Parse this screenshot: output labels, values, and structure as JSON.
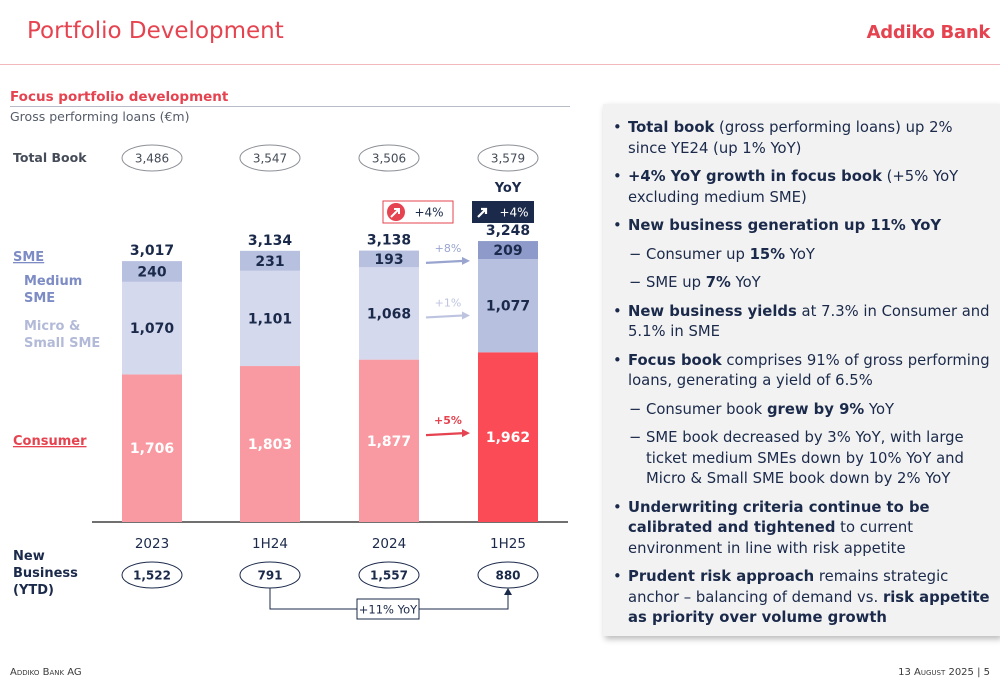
{
  "header": {
    "title": "Portfolio Development",
    "logo_text": "Addiko Bank"
  },
  "chart_header": {
    "heading": "Focus portfolio development",
    "subheading": "Gross performing loans (€m)"
  },
  "chart_data": {
    "type": "bar",
    "stacked": true,
    "categories": [
      "2023",
      "1H24",
      "2024",
      "1H25"
    ],
    "series": [
      {
        "name": "Consumer",
        "values": [
          1706,
          1803,
          1877,
          1962
        ]
      },
      {
        "name": "Micro & Small SME",
        "values": [
          1070,
          1101,
          1068,
          1077
        ]
      },
      {
        "name": "Medium SME",
        "values": [
          240,
          231,
          193,
          209
        ]
      }
    ],
    "series_group_label": "SME",
    "totals": [
      3017,
      3134,
      3138,
      3248
    ],
    "total_book_label": "Total Book",
    "total_book": [
      "3,486",
      "3,547",
      "3,506",
      "3,579"
    ],
    "new_business_label": "New Business (YTD)",
    "new_business": [
      "1,522",
      "791",
      "1,557",
      "880"
    ],
    "new_business_growth": "+11% YoY",
    "yoy_label": "YoY",
    "badges": [
      {
        "text": "+4%",
        "style": "outline"
      },
      {
        "text": "+4%",
        "style": "dark"
      }
    ],
    "growth_arrows": [
      {
        "series": "Medium SME",
        "text": "+8%"
      },
      {
        "series": "Micro & Small SME",
        "text": "+1%"
      },
      {
        "series": "Consumer",
        "text": "+5%"
      }
    ],
    "colors": {
      "consumer": "#f99aa2",
      "consumer_highlight": "#fb4b57",
      "micro_small_sme": "#d4d9ee",
      "micro_small_sme_highlight": "#b8c0e0",
      "medium_sme": "#b8c0e0",
      "medium_sme_highlight": "#8e9bca",
      "label_dark": "#1b2a4a",
      "label_light": "#ffffff",
      "accent_red": "#e5434f",
      "dark_badge": "#1b2a4a"
    }
  },
  "bullets": [
    {
      "level": 1,
      "segments": [
        {
          "t": "Total book",
          "b": true
        },
        {
          "t": " (gross performing loans) up 2% since YE24 (up 1% YoY)"
        }
      ]
    },
    {
      "level": 1,
      "segments": [
        {
          "t": "+4% YoY growth in focus book",
          "b": true
        },
        {
          "t": " (+5% YoY excluding medium SME)"
        }
      ]
    },
    {
      "level": 1,
      "segments": [
        {
          "t": "New business generation up 11% YoY",
          "b": true
        }
      ]
    },
    {
      "level": 2,
      "segments": [
        {
          "t": "Consumer up "
        },
        {
          "t": "15%",
          "b": true
        },
        {
          "t": " YoY"
        }
      ]
    },
    {
      "level": 2,
      "segments": [
        {
          "t": "SME up "
        },
        {
          "t": "7%",
          "b": true
        },
        {
          "t": " YoY"
        }
      ]
    },
    {
      "level": 1,
      "segments": [
        {
          "t": "New business yields",
          "b": true
        },
        {
          "t": " at 7.3% in Consumer and 5.1% in SME"
        }
      ]
    },
    {
      "level": 1,
      "segments": [
        {
          "t": "Focus book",
          "b": true
        },
        {
          "t": " comprises 91% of gross performing loans, generating a yield of 6.5%"
        }
      ]
    },
    {
      "level": 2,
      "segments": [
        {
          "t": "Consumer book "
        },
        {
          "t": "grew by 9%",
          "b": true
        },
        {
          "t": " YoY"
        }
      ]
    },
    {
      "level": 2,
      "segments": [
        {
          "t": "SME book decreased by 3% YoY, with large ticket medium SMEs down by 10% YoY and Micro & Small SME book down by 2% YoY"
        }
      ]
    },
    {
      "level": 1,
      "segments": [
        {
          "t": "Underwriting criteria continue to be calibrated and tightened",
          "b": true
        },
        {
          "t": " to current environment in line with risk appetite"
        }
      ]
    },
    {
      "level": 1,
      "segments": [
        {
          "t": "Prudent risk approach",
          "b": true
        },
        {
          "t": " remains strategic anchor – balancing of demand vs. "
        },
        {
          "t": "risk appetite as priority over volume growth",
          "b": true
        }
      ]
    }
  ],
  "footer": {
    "left": "Addiko Bank AG",
    "right": "13 August 2025 | 5"
  }
}
